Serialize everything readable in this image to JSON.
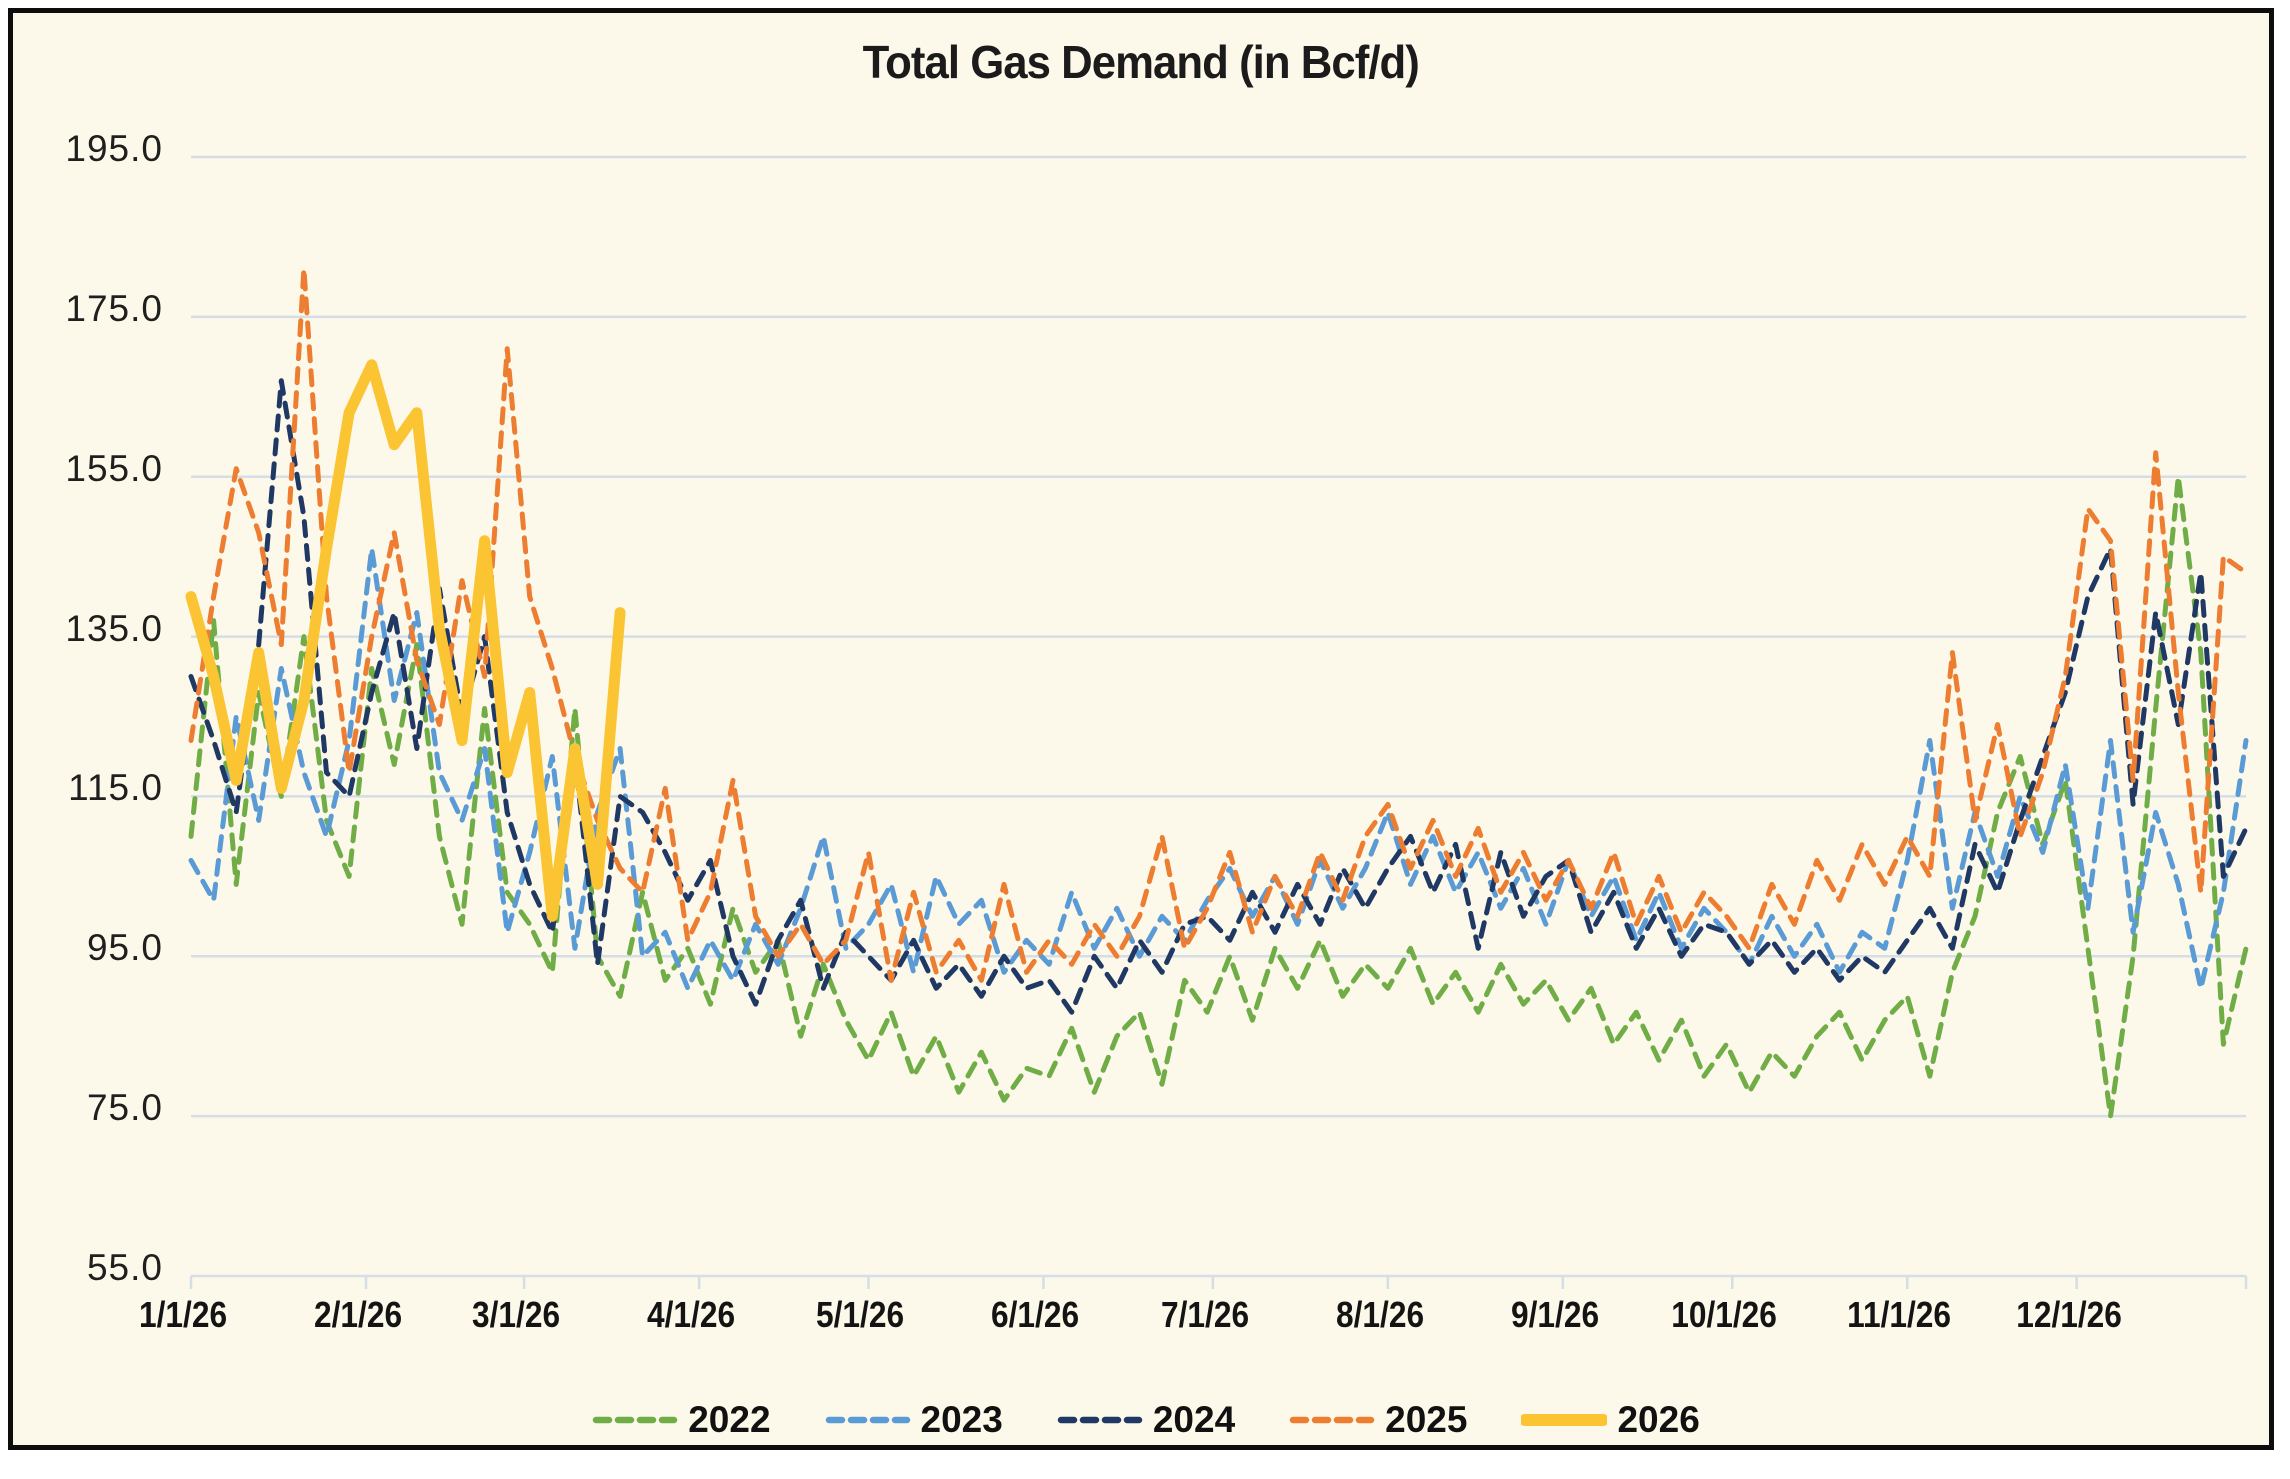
{
  "colors": {
    "background": "#FDF9EA",
    "frame_border": "#0d0d0d",
    "gridline": "#D5DDE6",
    "text": "#1b1b1b",
    "green_2022": "#70AD47",
    "blue_2023": "#5B9BD5",
    "navy_2024": "#1F3864",
    "orange_2025": "#ED7D31",
    "gold_2026": "#FBC432"
  },
  "chart_data": {
    "type": "line",
    "title": "Total Gas Demand (in Bcf/d)",
    "xlabel": "",
    "ylabel": "",
    "ylim": [
      55,
      195
    ],
    "y_tick_step": 20,
    "grid": true,
    "legend_position": "bottom",
    "y_ticks": [
      "195.0",
      "175.0",
      "155.0",
      "135.0",
      "115.0",
      "95.0",
      "75.0",
      "55.0"
    ],
    "x_ticks": [
      "1/1/26",
      "2/1/26",
      "3/1/26",
      "4/1/26",
      "5/1/26",
      "6/1/26",
      "7/1/26",
      "8/1/26",
      "9/1/26",
      "10/1/26",
      "11/1/26",
      "12/1/26"
    ],
    "month_start_days": [
      1,
      32,
      60,
      91,
      121,
      152,
      182,
      213,
      244,
      274,
      305,
      335
    ],
    "x_days": [
      1,
      5,
      9,
      13,
      17,
      21,
      25,
      29,
      33,
      37,
      41,
      45,
      49,
      53,
      57,
      61,
      65,
      69,
      73,
      77,
      81,
      85,
      89,
      93,
      97,
      101,
      105,
      109,
      113,
      117,
      121,
      125,
      129,
      133,
      137,
      141,
      145,
      149,
      153,
      157,
      161,
      165,
      169,
      173,
      177,
      181,
      185,
      189,
      193,
      197,
      201,
      205,
      209,
      213,
      217,
      221,
      225,
      229,
      233,
      237,
      241,
      245,
      249,
      253,
      257,
      261,
      265,
      269,
      273,
      277,
      281,
      285,
      289,
      293,
      297,
      301,
      305,
      309,
      313,
      317,
      321,
      325,
      329,
      333,
      337,
      341,
      345,
      349,
      353,
      357,
      361,
      365
    ],
    "series": [
      {
        "name": "2022",
        "color": "#70AD47",
        "dash": true,
        "width": 5,
        "values": [
          110,
          137,
          104,
          128,
          115,
          135,
          112,
          105,
          131,
          119,
          134,
          110,
          99,
          126,
          103,
          99,
          93,
          126,
          95,
          90,
          103,
          92,
          96,
          89,
          101,
          93,
          97,
          85,
          94,
          87,
          82,
          88,
          80,
          85,
          78,
          83,
          77,
          81,
          80,
          86,
          78,
          85,
          88,
          79,
          92,
          88,
          95,
          87,
          96,
          91,
          97,
          90,
          94,
          91,
          96,
          89,
          93,
          88,
          94,
          89,
          92,
          87,
          91,
          84,
          88,
          82,
          87,
          80,
          84,
          78,
          83,
          80,
          85,
          88,
          82,
          87,
          90,
          80,
          93,
          100,
          113,
          120,
          109,
          117,
          96,
          75,
          95,
          126,
          155,
          133,
          84,
          96
        ]
      },
      {
        "name": "2023",
        "color": "#5B9BD5",
        "dash": true,
        "width": 5,
        "values": [
          107,
          102,
          125,
          112,
          131,
          118,
          110,
          122,
          146,
          127,
          138,
          118,
          112,
          121,
          98,
          108,
          120,
          96,
          113,
          121,
          95,
          98,
          91,
          97,
          92,
          99,
          94,
          101,
          110,
          96,
          99,
          104,
          93,
          105,
          99,
          102,
          93,
          97,
          94,
          103,
          96,
          101,
          95,
          100,
          97,
          102,
          106,
          100,
          105,
          99,
          107,
          101,
          106,
          113,
          104,
          110,
          103,
          108,
          101,
          106,
          99,
          107,
          100,
          105,
          97,
          103,
          96,
          101,
          98,
          94,
          100,
          95,
          99,
          93,
          98,
          96,
          107,
          122,
          101,
          113,
          105,
          115,
          108,
          119,
          101,
          122,
          98,
          113,
          104,
          91,
          103,
          122
        ]
      },
      {
        "name": "2024",
        "color": "#1F3864",
        "dash": true,
        "width": 5,
        "values": [
          130,
          122,
          113,
          134,
          167,
          150,
          118,
          115,
          128,
          138,
          121,
          141,
          125,
          135,
          113,
          104,
          98,
          120,
          94,
          115,
          113,
          108,
          102,
          107,
          95,
          89,
          97,
          102,
          91,
          98,
          95,
          92,
          97,
          91,
          94,
          90,
          95,
          91,
          92,
          88,
          95,
          91,
          97,
          93,
          99,
          100,
          97,
          103,
          98,
          104,
          99,
          106,
          101,
          106,
          110,
          103,
          109,
          96,
          108,
          100,
          105,
          107,
          98,
          103,
          96,
          101,
          95,
          99,
          98,
          94,
          97,
          93,
          96,
          92,
          95,
          93,
          97,
          101,
          96,
          109,
          103,
          112,
          120,
          128,
          140,
          146,
          114,
          138,
          124,
          143,
          105,
          111
        ]
      },
      {
        "name": "2025",
        "color": "#ED7D31",
        "dash": true,
        "width": 5,
        "values": [
          122,
          140,
          156,
          148,
          134,
          181,
          140,
          118,
          135,
          148,
          132,
          124,
          142,
          130,
          171,
          140,
          131,
          120,
          112,
          106,
          103,
          116,
          97,
          103,
          117,
          100,
          95,
          99,
          94,
          97,
          108,
          92,
          103,
          93,
          97,
          92,
          104,
          93,
          97,
          94,
          99,
          95,
          100,
          110,
          96,
          101,
          108,
          98,
          105,
          100,
          108,
          102,
          110,
          114,
          106,
          112,
          105,
          111,
          103,
          108,
          102,
          107,
          101,
          108,
          99,
          105,
          98,
          103,
          100,
          96,
          104,
          99,
          107,
          102,
          109,
          104,
          110,
          105,
          133,
          112,
          124,
          110,
          118,
          130,
          151,
          147,
          117,
          158,
          128,
          103,
          145,
          143
        ]
      },
      {
        "name": "2026",
        "color": "#FBC432",
        "dash": false,
        "width": 11,
        "values": [
          140,
          130,
          117,
          133,
          116,
          127,
          146,
          163,
          169,
          159,
          163,
          136,
          122,
          147,
          118,
          128,
          100,
          121,
          104,
          138
        ]
      }
    ]
  },
  "legend": [
    {
      "label": "2022",
      "color": "#70AD47",
      "style": "dashed"
    },
    {
      "label": "2023",
      "color": "#5B9BD5",
      "style": "dashed"
    },
    {
      "label": "2024",
      "color": "#1F3864",
      "style": "dashed"
    },
    {
      "label": "2025",
      "color": "#ED7D31",
      "style": "dashed"
    },
    {
      "label": "2026",
      "color": "#FBC432",
      "style": "solid"
    }
  ]
}
